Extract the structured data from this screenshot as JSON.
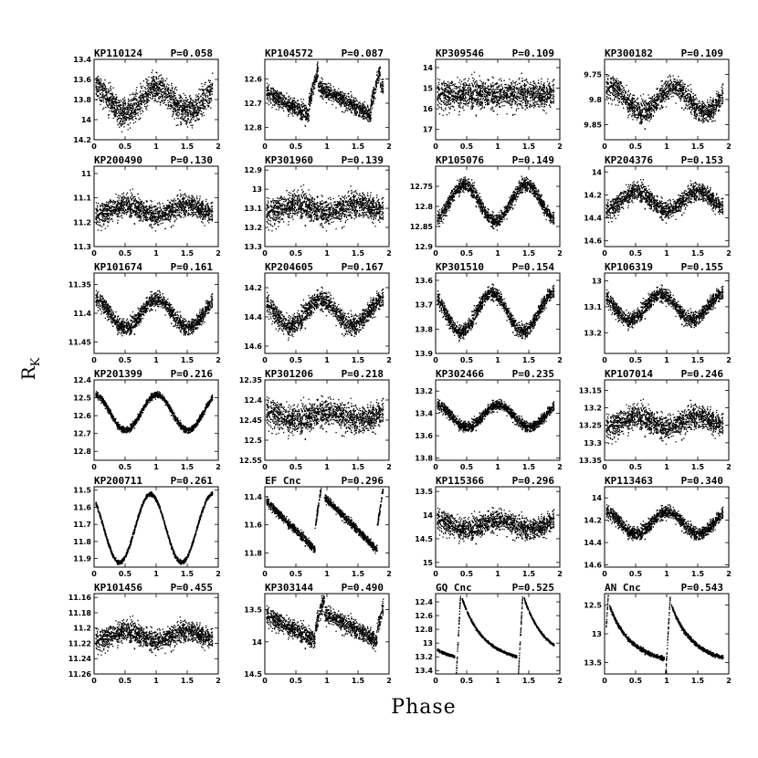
{
  "figure": {
    "ylabel": "R",
    "ylabel_sub": "K",
    "xlabel": "Phase"
  },
  "chart_data": [
    {
      "type": "scatter",
      "name": "KP110124",
      "period": "P=0.058",
      "yticks": [
        "13.4",
        "13.6",
        "13.8",
        "14",
        "14.2"
      ],
      "ylim": [
        14.2,
        13.4
      ],
      "xticks": [
        "0",
        "0.5",
        "1",
        "1.5",
        "2"
      ],
      "xlim": [
        0,
        2
      ],
      "shape": "sine",
      "amp": 0.12,
      "mean": 13.8,
      "scatter": 0.12,
      "peak": 0.0
    },
    {
      "type": "scatter",
      "name": "KP104572",
      "period": "P=0.087",
      "yticks": [
        "12.6",
        "12.7",
        "12.8"
      ],
      "ylim": [
        12.85,
        12.52
      ],
      "xticks": [
        "0",
        "0.5",
        "1",
        "1.5",
        "2"
      ],
      "xlim": [
        0,
        2
      ],
      "shape": "sawtooth",
      "amp": 0.07,
      "mean": 12.7,
      "scatter": 0.03,
      "peak": 0.85
    },
    {
      "type": "scatter",
      "name": "KP309546",
      "period": "P=0.109",
      "yticks": [
        "14",
        "15",
        "16",
        "17"
      ],
      "ylim": [
        17.5,
        13.6
      ],
      "xticks": [
        "0",
        "0.5",
        "1",
        "1.5",
        "2"
      ],
      "xlim": [
        0,
        2
      ],
      "shape": "flat",
      "amp": 0.1,
      "mean": 15.3,
      "scatter": 0.6,
      "peak": 0.0
    },
    {
      "type": "scatter",
      "name": "KP300182",
      "period": "P=0.109",
      "yticks": [
        "9.75",
        "9.8",
        "9.85"
      ],
      "ylim": [
        9.88,
        9.72
      ],
      "xticks": [
        "0",
        "0.5",
        "1",
        "1.5",
        "2"
      ],
      "xlim": [
        0,
        2
      ],
      "shape": "sine",
      "amp": 0.025,
      "mean": 9.8,
      "scatter": 0.02,
      "peak": 0.1
    },
    {
      "type": "scatter",
      "name": "KP200490",
      "period": "P=0.130",
      "yticks": [
        "11",
        "11.1",
        "11.2",
        "11.3"
      ],
      "ylim": [
        11.3,
        10.97
      ],
      "xticks": [
        "0",
        "0.5",
        "1",
        "1.5",
        "2"
      ],
      "xlim": [
        0,
        2
      ],
      "shape": "sine",
      "amp": 0.02,
      "mean": 11.15,
      "scatter": 0.04,
      "peak": 0.5
    },
    {
      "type": "scatter",
      "name": "KP301960",
      "period": "P=0.139",
      "yticks": [
        "12.9",
        "13",
        "13.1",
        "13.2",
        "13.3"
      ],
      "ylim": [
        13.3,
        12.88
      ],
      "xticks": [
        "0",
        "0.5",
        "1",
        "1.5",
        "2"
      ],
      "xlim": [
        0,
        2
      ],
      "shape": "sine",
      "amp": 0.02,
      "mean": 13.1,
      "scatter": 0.06,
      "peak": 0.5
    },
    {
      "type": "scatter",
      "name": "KP105076",
      "period": "P=0.149",
      "yticks": [
        "12.75",
        "12.8",
        "12.85",
        "12.9"
      ],
      "ylim": [
        12.9,
        12.7
      ],
      "xticks": [
        "0",
        "0.5",
        "1",
        "1.5",
        "2"
      ],
      "xlim": [
        0,
        2
      ],
      "shape": "sine",
      "amp": 0.045,
      "mean": 12.79,
      "scatter": 0.015,
      "peak": 0.45
    },
    {
      "type": "scatter",
      "name": "KP204376",
      "period": "P=0.153",
      "yticks": [
        "14",
        "14.2",
        "14.4",
        "14.6"
      ],
      "ylim": [
        14.65,
        13.95
      ],
      "xticks": [
        "0",
        "0.5",
        "1",
        "1.5",
        "2"
      ],
      "xlim": [
        0,
        2
      ],
      "shape": "sine",
      "amp": 0.08,
      "mean": 14.25,
      "scatter": 0.07,
      "peak": 0.5
    },
    {
      "type": "scatter",
      "name": "KP101674",
      "period": "P=0.161",
      "yticks": [
        "11.35",
        "11.4",
        "11.45"
      ],
      "ylim": [
        11.47,
        11.33
      ],
      "xticks": [
        "0",
        "0.5",
        "1",
        "1.5",
        "2"
      ],
      "xlim": [
        0,
        2
      ],
      "shape": "sine",
      "amp": 0.025,
      "mean": 11.4,
      "scatter": 0.012,
      "peak": 0.0
    },
    {
      "type": "scatter",
      "name": "KP204605",
      "period": "P=0.167",
      "yticks": [
        "14.2",
        "14.4",
        "14.6"
      ],
      "ylim": [
        14.65,
        14.1
      ],
      "xticks": [
        "0",
        "0.5",
        "1",
        "1.5",
        "2"
      ],
      "xlim": [
        0,
        2
      ],
      "shape": "sine",
      "amp": 0.09,
      "mean": 14.37,
      "scatter": 0.06,
      "peak": 0.9
    },
    {
      "type": "scatter",
      "name": "KP301510",
      "period": "P=0.154",
      "yticks": [
        "13.6",
        "13.7",
        "13.8",
        "13.9"
      ],
      "ylim": [
        13.9,
        13.57
      ],
      "xticks": [
        "0",
        "0.5",
        "1",
        "1.5",
        "2"
      ],
      "xlim": [
        0,
        2
      ],
      "shape": "sine",
      "amp": 0.08,
      "mean": 13.73,
      "scatter": 0.025,
      "peak": 0.9
    },
    {
      "type": "scatter",
      "name": "KP106319",
      "period": "P=0.155",
      "yticks": [
        "13",
        "13.1",
        "13.2"
      ],
      "ylim": [
        13.28,
        12.97
      ],
      "xticks": [
        "0",
        "0.5",
        "1",
        "1.5",
        "2"
      ],
      "xlim": [
        0,
        2
      ],
      "shape": "sine",
      "amp": 0.05,
      "mean": 13.1,
      "scatter": 0.025,
      "peak": 0.9
    },
    {
      "type": "scatter",
      "name": "KP201399",
      "period": "P=0.216",
      "yticks": [
        "12.4",
        "12.5",
        "12.6",
        "12.7",
        "12.8"
      ],
      "ylim": [
        12.85,
        12.4
      ],
      "xticks": [
        "0",
        "0.5",
        "1",
        "1.5",
        "2"
      ],
      "xlim": [
        0,
        2
      ],
      "shape": "sine",
      "amp": 0.1,
      "mean": 12.58,
      "scatter": 0.015,
      "peak": 0.0
    },
    {
      "type": "scatter",
      "name": "KP301206",
      "period": "P=0.218",
      "yticks": [
        "12.35",
        "12.4",
        "12.45",
        "12.5",
        "12.55"
      ],
      "ylim": [
        12.55,
        12.35
      ],
      "xticks": [
        "0",
        "0.5",
        "1",
        "1.5",
        "2"
      ],
      "xlim": [
        0,
        2
      ],
      "shape": "sine",
      "amp": 0.01,
      "mean": 12.44,
      "scatter": 0.03,
      "peak": 0.0
    },
    {
      "type": "scatter",
      "name": "KP302466",
      "period": "P=0.235",
      "yticks": [
        "13.2",
        "13.4",
        "13.6",
        "13.8"
      ],
      "ylim": [
        13.82,
        13.1
      ],
      "xticks": [
        "0",
        "0.5",
        "1",
        "1.5",
        "2"
      ],
      "xlim": [
        0,
        2
      ],
      "shape": "sine",
      "amp": 0.1,
      "mean": 13.42,
      "scatter": 0.04,
      "peak": 0.0
    },
    {
      "type": "scatter",
      "name": "KP107014",
      "period": "P=0.246",
      "yticks": [
        "13.15",
        "13.2",
        "13.25",
        "13.3",
        "13.35"
      ],
      "ylim": [
        13.35,
        13.12
      ],
      "xticks": [
        "0",
        "0.5",
        "1",
        "1.5",
        "2"
      ],
      "xlim": [
        0,
        2
      ],
      "shape": "sine",
      "amp": 0.015,
      "mean": 13.24,
      "scatter": 0.03,
      "peak": 0.5
    },
    {
      "type": "scatter",
      "name": "KP200711",
      "period": "P=0.261",
      "yticks": [
        "11.5",
        "11.6",
        "11.7",
        "11.8",
        "11.9"
      ],
      "ylim": [
        11.95,
        11.48
      ],
      "xticks": [
        "0",
        "0.5",
        "1",
        "1.5",
        "2"
      ],
      "xlim": [
        0,
        2
      ],
      "shape": "sine",
      "amp": 0.2,
      "mean": 11.72,
      "scatter": 0.01,
      "peak": 0.9
    },
    {
      "type": "scatter",
      "name": "EF Cnc",
      "period": "P=0.296",
      "yticks": [
        "11.4",
        "11.6",
        "11.8"
      ],
      "ylim": [
        11.9,
        11.33
      ],
      "xticks": [
        "0",
        "0.5",
        "1",
        "1.5",
        "2"
      ],
      "xlim": [
        0,
        2
      ],
      "shape": "sawtooth",
      "amp": 0.22,
      "mean": 11.62,
      "scatter": 0.025,
      "peak": 0.95
    },
    {
      "type": "scatter",
      "name": "KP115366",
      "period": "P=0.296",
      "yticks": [
        "13.5",
        "14",
        "14.5",
        "15"
      ],
      "ylim": [
        15.1,
        13.4
      ],
      "xticks": [
        "0",
        "0.5",
        "1",
        "1.5",
        "2"
      ],
      "xlim": [
        0,
        2
      ],
      "shape": "sine",
      "amp": 0.1,
      "mean": 14.2,
      "scatter": 0.2,
      "peak": 0.0
    },
    {
      "type": "scatter",
      "name": "KP113463",
      "period": "P=0.340",
      "yticks": [
        "14",
        "14.2",
        "14.4",
        "14.6"
      ],
      "ylim": [
        14.62,
        13.9
      ],
      "xticks": [
        "0",
        "0.5",
        "1",
        "1.5",
        "2"
      ],
      "xlim": [
        0,
        2
      ],
      "shape": "sine",
      "amp": 0.1,
      "mean": 14.22,
      "scatter": 0.05,
      "peak": 0.0
    },
    {
      "type": "scatter",
      "name": "KP101456",
      "period": "P=0.455",
      "yticks": [
        "11.16",
        "11.18",
        "11.2",
        "11.22",
        "11.24",
        "11.26"
      ],
      "ylim": [
        11.26,
        11.155
      ],
      "xticks": [
        "0",
        "0.5",
        "1",
        "1.5",
        "2"
      ],
      "xlim": [
        0,
        2
      ],
      "shape": "sine",
      "amp": 0.006,
      "mean": 11.21,
      "scatter": 0.012,
      "peak": 0.5
    },
    {
      "type": "scatter",
      "name": "KP303144",
      "period": "P=0.490",
      "yticks": [
        "13.5",
        "14",
        "14.5"
      ],
      "ylim": [
        14.5,
        13.25
      ],
      "xticks": [
        "0",
        "0.5",
        "1",
        "1.5",
        "2"
      ],
      "xlim": [
        0,
        2
      ],
      "shape": "sawtooth",
      "amp": 0.25,
      "mean": 13.8,
      "scatter": 0.12,
      "peak": 0.95
    },
    {
      "type": "scatter",
      "name": "GQ Cnc",
      "period": "P=0.525",
      "yticks": [
        "12.4",
        "12.6",
        "12.8",
        "13",
        "13.2",
        "13.4"
      ],
      "ylim": [
        13.45,
        12.28
      ],
      "xticks": [
        "0",
        "0.5",
        "1",
        "1.5",
        "2"
      ],
      "xlim": [
        0,
        2
      ],
      "shape": "rrlyr",
      "amp": 0.5,
      "mean": 12.85,
      "scatter": 0.015,
      "peak": 0.3
    },
    {
      "type": "scatter",
      "name": "AN Cnc",
      "period": "P=0.543",
      "yticks": [
        "12.5",
        "13",
        "13.5"
      ],
      "ylim": [
        13.7,
        12.3
      ],
      "xticks": [
        "0",
        "0.5",
        "1",
        "1.5",
        "2"
      ],
      "xlim": [
        0,
        2
      ],
      "shape": "rrlyr",
      "amp": 0.55,
      "mean": 13.05,
      "scatter": 0.03,
      "peak": 0.95
    }
  ]
}
